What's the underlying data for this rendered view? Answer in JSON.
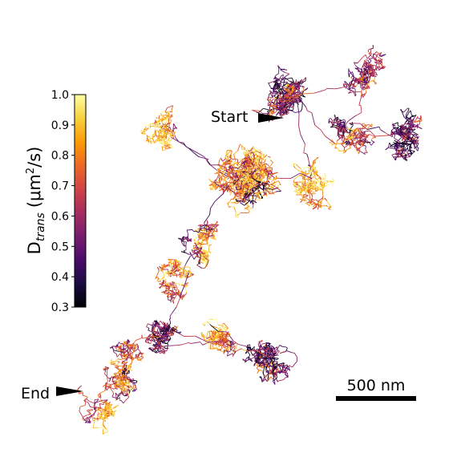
{
  "chart_data": {
    "type": "trajectory",
    "colorbar": {
      "label_main": "D",
      "label_sub": "trans",
      "label_unit_pre": "(μm",
      "label_unit_sup": "2",
      "label_unit_post": "/s)",
      "min": 0.3,
      "max": 1.0,
      "ticks": [
        "0.3",
        "0.4",
        "0.5",
        "0.6",
        "0.7",
        "0.8",
        "0.9",
        "1.0"
      ],
      "colormap": [
        "#000004",
        "#1b0c41",
        "#4a0c6b",
        "#781c6d",
        "#a52c60",
        "#cf4446",
        "#ed6925",
        "#fb9b06",
        "#f7d13d",
        "#fcffa4"
      ]
    },
    "annotations": {
      "start": "Start",
      "end": "End"
    },
    "scale_bar": {
      "label": "500 nm",
      "length_nm": 500
    }
  }
}
